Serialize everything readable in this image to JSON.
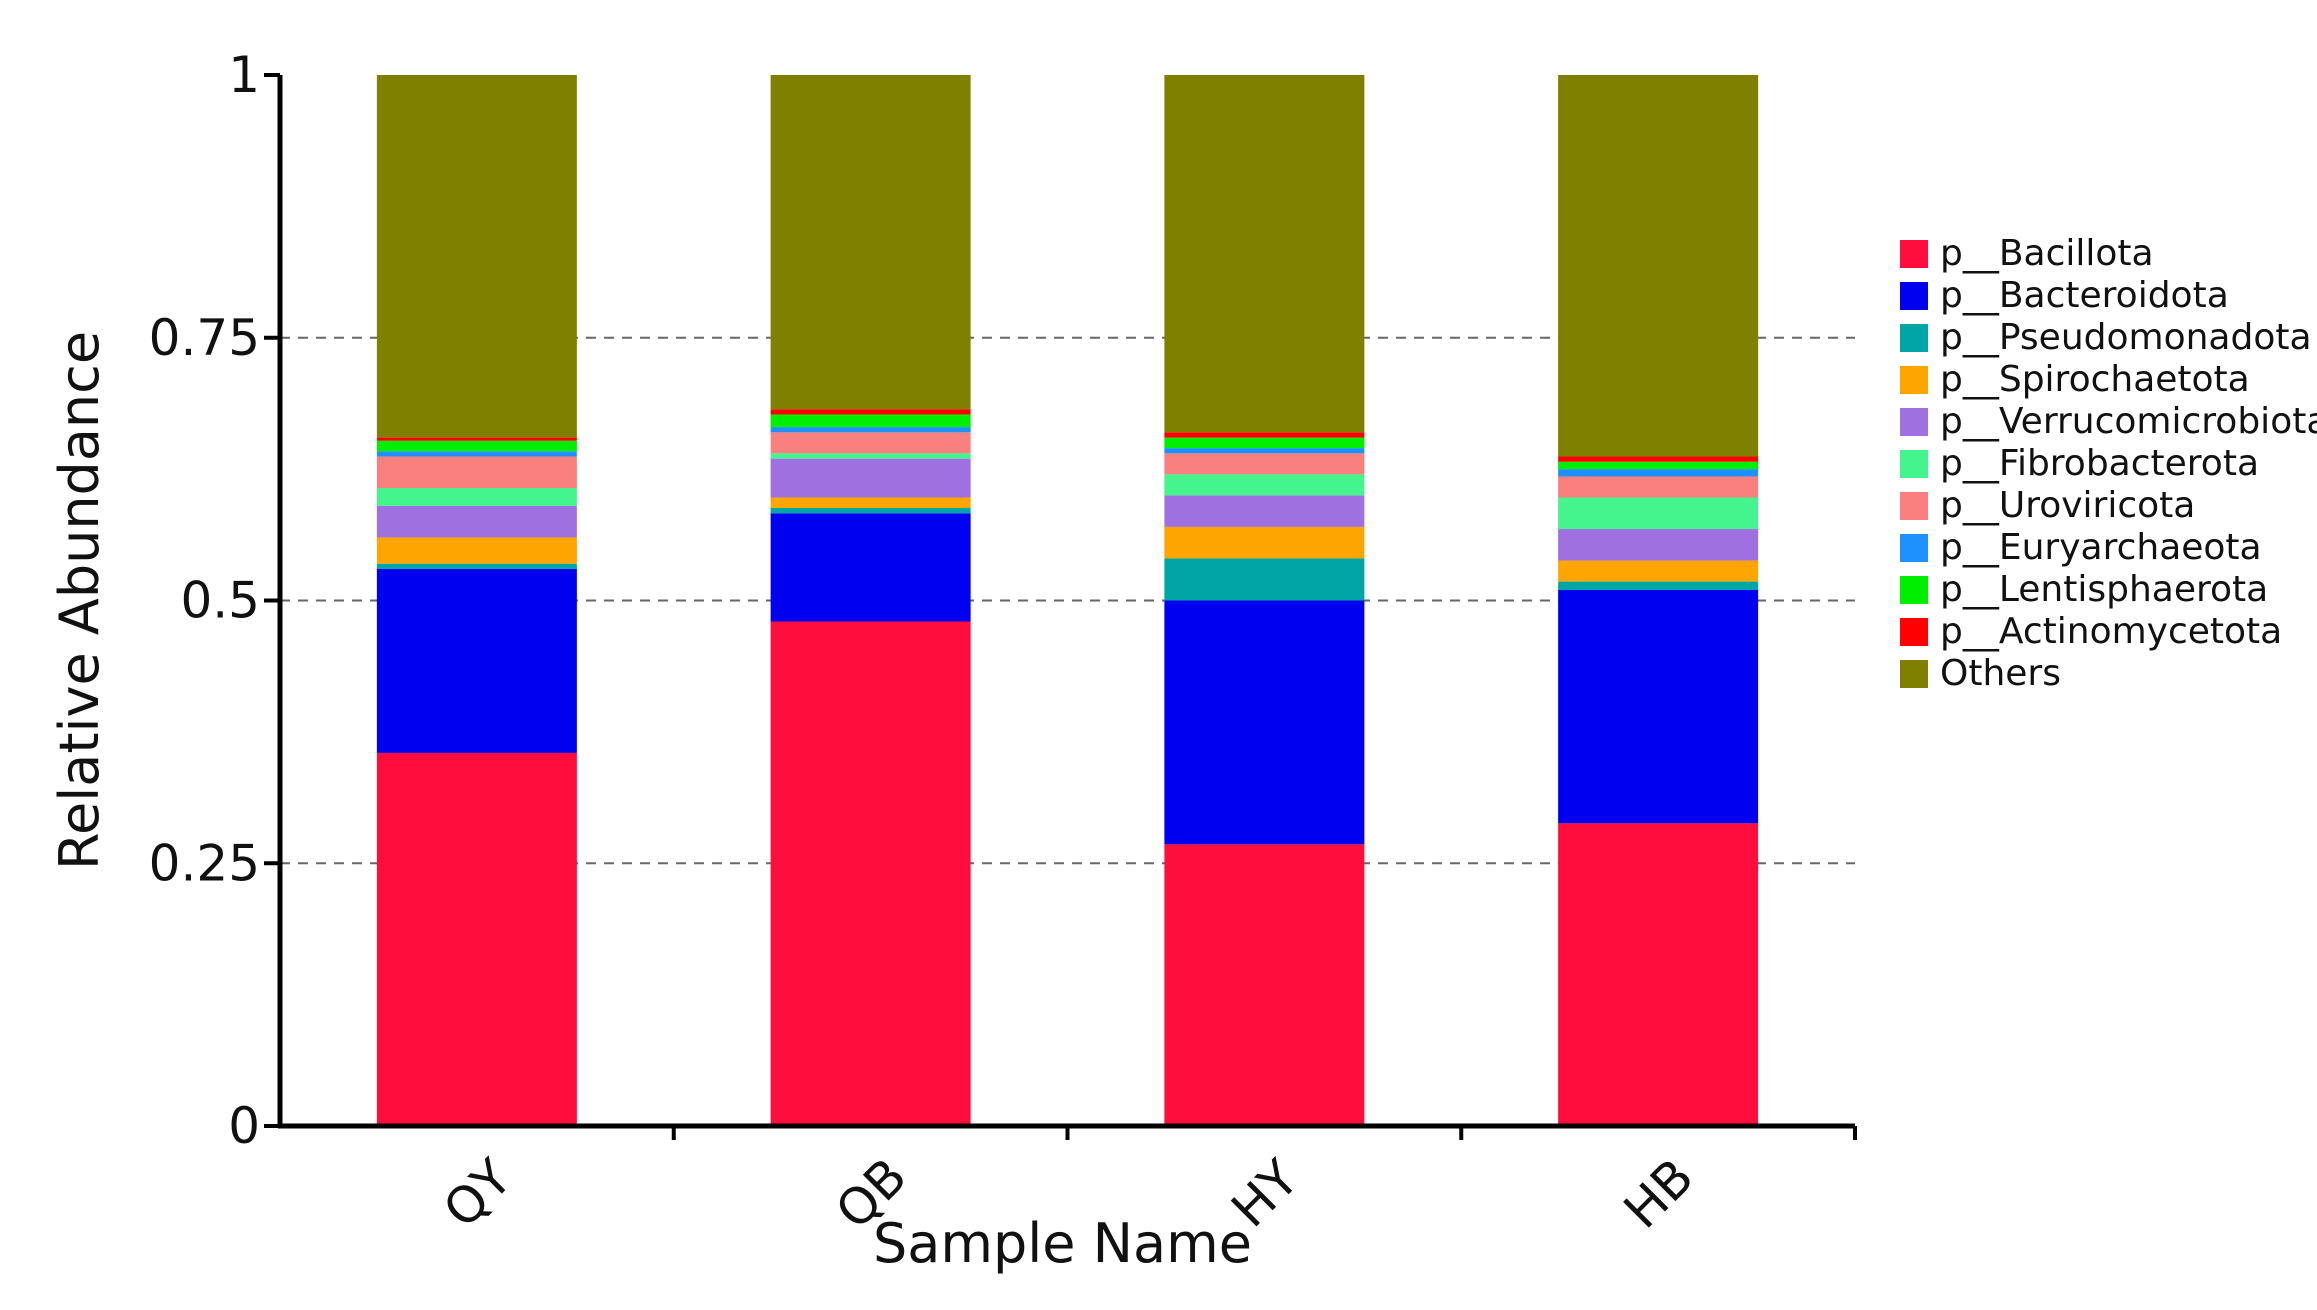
{
  "chart_data": {
    "type": "bar",
    "stacked": true,
    "xlabel": "Sample Name",
    "ylabel": "Relative Abundance",
    "categories": [
      "QY",
      "QB",
      "HY",
      "HB"
    ],
    "ylim": [
      0,
      1
    ],
    "yticks": [
      0,
      0.25,
      0.5,
      0.75,
      1
    ],
    "ytick_labels": [
      "0",
      "0.25",
      "0.5",
      "0.75",
      "1"
    ],
    "grid": "horizontal dashed at 0.25, 0.5, 0.75",
    "legend_position": "right",
    "series": [
      {
        "name": "p__Bacillota",
        "color": "#ff0d3c",
        "values": [
          0.355,
          0.48,
          0.268,
          0.288
        ]
      },
      {
        "name": "p__Bacteroidota",
        "color": "#0000f0",
        "values": [
          0.175,
          0.103,
          0.232,
          0.222
        ]
      },
      {
        "name": "p__Pseudomonadota",
        "color": "#00a6a6",
        "values": [
          0.005,
          0.005,
          0.04,
          0.008
        ]
      },
      {
        "name": "p__Spirochaetota",
        "color": "#ffa500",
        "values": [
          0.025,
          0.01,
          0.03,
          0.02
        ]
      },
      {
        "name": "p__Verrucomicrobiota",
        "color": "#9f70e0",
        "values": [
          0.03,
          0.037,
          0.03,
          0.03
        ]
      },
      {
        "name": "p__Fibrobacterota",
        "color": "#44f58e",
        "values": [
          0.017,
          0.005,
          0.02,
          0.03
        ]
      },
      {
        "name": "p__Uroviricota",
        "color": "#fa8080",
        "values": [
          0.03,
          0.02,
          0.02,
          0.02
        ]
      },
      {
        "name": "p__Euryarchaeota",
        "color": "#1e90ff",
        "values": [
          0.005,
          0.005,
          0.005,
          0.007
        ]
      },
      {
        "name": "p__Lentisphaerota",
        "color": "#00ee00",
        "values": [
          0.01,
          0.012,
          0.01,
          0.007
        ]
      },
      {
        "name": "p__Actinomycetota",
        "color": "#ff0000",
        "values": [
          0.003,
          0.005,
          0.005,
          0.005
        ]
      },
      {
        "name": "Others",
        "color": "#808000",
        "values": [
          0.345,
          0.318,
          0.34,
          0.363
        ]
      }
    ]
  }
}
